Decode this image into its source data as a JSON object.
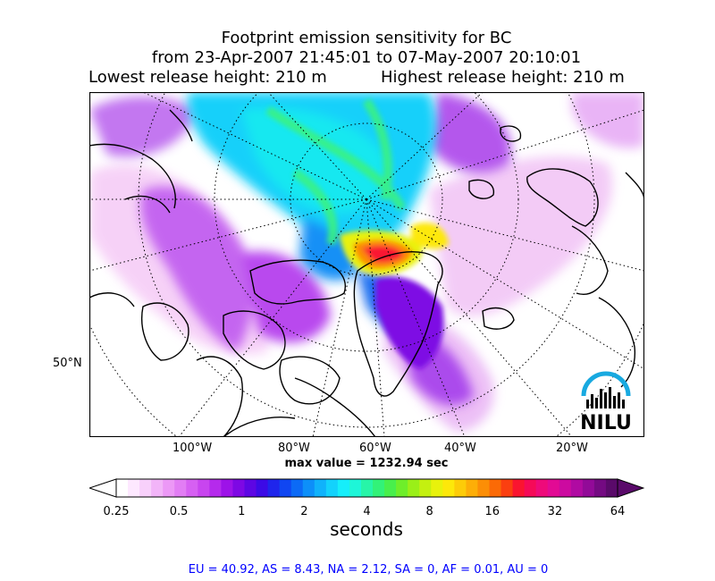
{
  "title": {
    "line1": "Footprint emission sensitivity for BC",
    "line2": "from 23-Apr-2007 21:45:01 to 07-May-2007 20:10:01",
    "lowest": "Lowest release height: 210 m",
    "highest": "Highest release height: 210 m"
  },
  "map": {
    "projection": "polar stereographic (north)",
    "lat_label": "50°N",
    "lon_labels": [
      "100°W",
      "80°W",
      "60°W",
      "40°W",
      "20°W"
    ],
    "graticule": "dotted",
    "logo_text": "NILU"
  },
  "max_value": "max value = 1232.94 sec",
  "colorbar": {
    "unit": "seconds",
    "tick_labels": [
      "0.25",
      "0.5",
      "1",
      "2",
      "4",
      "8",
      "16",
      "32",
      "64"
    ],
    "extend": "both",
    "colors": [
      "#ffffff",
      "#fde8ff",
      "#f8d0fb",
      "#f2b4f8",
      "#ec98f6",
      "#e27df4",
      "#d660f2",
      "#c845ef",
      "#b52aec",
      "#9d12e8",
      "#7e08e4",
      "#5d06e3",
      "#3c0ae6",
      "#1f25ec",
      "#1046f2",
      "#0c6af6",
      "#0d8ff9",
      "#10b2fb",
      "#13d2fc",
      "#16eefa",
      "#1ef6d8",
      "#27f5a8",
      "#32f278",
      "#48ef4c",
      "#6eee2a",
      "#9aef18",
      "#c4f010",
      "#e8f20c",
      "#fde80a",
      "#fdcc08",
      "#fdae07",
      "#fc8e06",
      "#fb6a06",
      "#fb3f10",
      "#fa1430",
      "#f50a58",
      "#ee0a7a",
      "#e20a94",
      "#cc0aa0",
      "#b00aa2",
      "#920a98",
      "#740a82",
      "#5a0a6a"
    ]
  },
  "stats": "EU = 40.92,  AS = 8.43,  NA = 2.12,  SA = 0,  AF = 0.01,  AU = 0"
}
